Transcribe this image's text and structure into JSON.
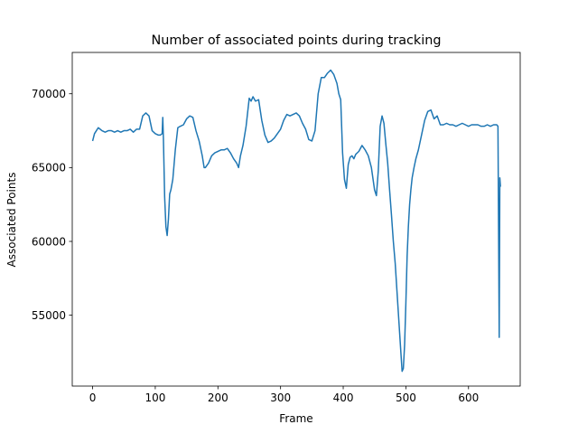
{
  "chart_data": {
    "type": "line",
    "title": "Number of associated points during tracking",
    "xlabel": "Frame",
    "ylabel": "Associated Points",
    "xlim": [
      -32.5,
      682.5
    ],
    "ylim": [
      50200,
      72800
    ],
    "xticks": [
      0,
      100,
      200,
      300,
      400,
      500,
      600
    ],
    "yticks": [
      55000,
      60000,
      65000,
      70000
    ],
    "grid": false,
    "legend": "none",
    "series": [
      {
        "color": "#1f77b4",
        "x": [
          0,
          3,
          6,
          9,
          12,
          15,
          20,
          25,
          30,
          35,
          40,
          45,
          50,
          55,
          60,
          65,
          70,
          75,
          80,
          85,
          90,
          95,
          100,
          105,
          108,
          111,
          112,
          113,
          115,
          117,
          119,
          121,
          123,
          125,
          128,
          132,
          136,
          140,
          145,
          150,
          155,
          160,
          165,
          170,
          173,
          175,
          178,
          180,
          185,
          190,
          195,
          200,
          205,
          210,
          215,
          220,
          225,
          230,
          233,
          236,
          240,
          245,
          250,
          253,
          256,
          260,
          265,
          270,
          275,
          280,
          285,
          290,
          295,
          300,
          305,
          310,
          315,
          320,
          325,
          330,
          335,
          340,
          345,
          350,
          355,
          360,
          365,
          370,
          375,
          380,
          385,
          390,
          393,
          396,
          399,
          402,
          405,
          408,
          411,
          414,
          417,
          420,
          425,
          430,
          435,
          440,
          445,
          450,
          453,
          456,
          459,
          462,
          465,
          468,
          471,
          474,
          477,
          480,
          483,
          486,
          489,
          492,
          494,
          496,
          498,
          500,
          502,
          504,
          506,
          508,
          510,
          513,
          516,
          520,
          525,
          530,
          535,
          540,
          545,
          550,
          555,
          560,
          565,
          570,
          575,
          580,
          585,
          590,
          595,
          600,
          605,
          610,
          615,
          620,
          625,
          630,
          635,
          640,
          645,
          647,
          649,
          650,
          651
        ],
        "y": [
          66800,
          67300,
          67500,
          67700,
          67600,
          67500,
          67400,
          67500,
          67500,
          67400,
          67500,
          67400,
          67500,
          67500,
          67600,
          67400,
          67600,
          67600,
          68500,
          68700,
          68500,
          67500,
          67300,
          67200,
          67200,
          67300,
          68400,
          67000,
          63000,
          61000,
          60400,
          61500,
          63200,
          63500,
          64200,
          66200,
          67700,
          67800,
          67900,
          68300,
          68500,
          68400,
          67500,
          66800,
          66200,
          65800,
          65000,
          65000,
          65300,
          65800,
          66000,
          66100,
          66200,
          66200,
          66300,
          66000,
          65600,
          65300,
          65000,
          65800,
          66500,
          67800,
          69700,
          69500,
          69800,
          69500,
          69600,
          68200,
          67200,
          66700,
          66800,
          67000,
          67300,
          67600,
          68200,
          68600,
          68500,
          68600,
          68700,
          68500,
          68000,
          67600,
          66900,
          66800,
          67500,
          70000,
          71100,
          71100,
          71400,
          71600,
          71300,
          70700,
          70000,
          69600,
          66000,
          64200,
          63600,
          65200,
          65700,
          65800,
          65600,
          65900,
          66100,
          66500,
          66200,
          65800,
          65000,
          63500,
          63100,
          64800,
          67800,
          68500,
          68000,
          66600,
          65300,
          63500,
          61800,
          60000,
          58500,
          56500,
          54500,
          52500,
          51200,
          51400,
          53000,
          55800,
          59000,
          61000,
          62500,
          63500,
          64300,
          65000,
          65600,
          66200,
          67200,
          68200,
          68800,
          68900,
          68300,
          68500,
          67900,
          67900,
          68000,
          67900,
          67900,
          67800,
          67900,
          68000,
          67900,
          67800,
          67900,
          67900,
          67900,
          67800,
          67800,
          67900,
          67800,
          67900,
          67900,
          67800,
          53500,
          64300,
          63700
        ]
      }
    ]
  }
}
